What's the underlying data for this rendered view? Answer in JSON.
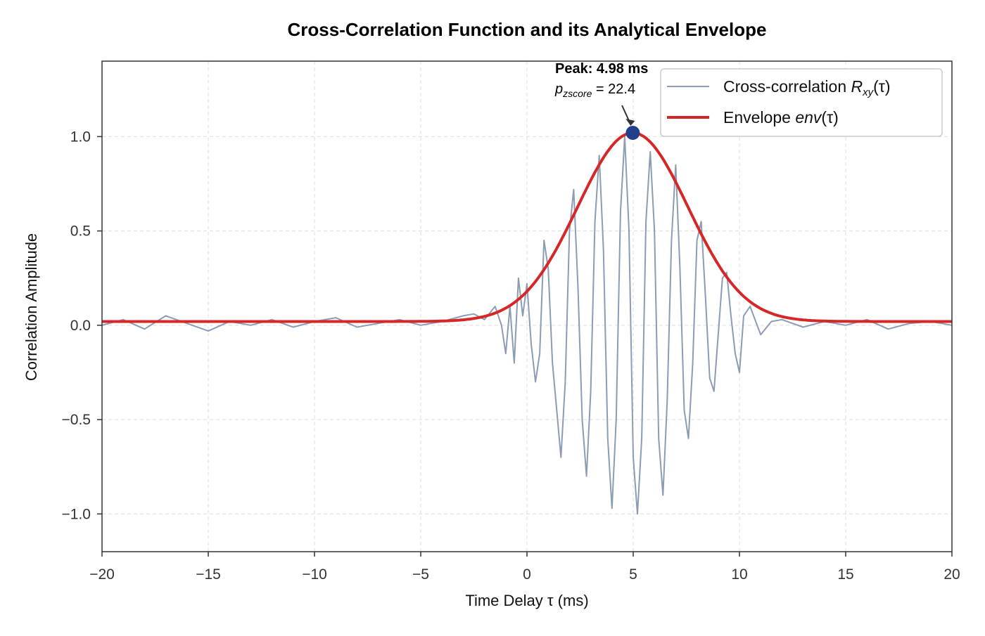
{
  "chart_data": {
    "type": "line",
    "title": "Cross-Correlation Function and its Analytical Envelope",
    "xlabel": "Time Delay τ (ms)",
    "ylabel": "Correlation Amplitude",
    "xlim": [
      -20,
      20
    ],
    "ylim": [
      -1.2,
      1.4
    ],
    "xticks": [
      -20,
      -15,
      -10,
      -5,
      0,
      5,
      10,
      15,
      20
    ],
    "xtick_labels": [
      "−20",
      "−15",
      "−10",
      "−5",
      "0",
      "5",
      "10",
      "15",
      "20"
    ],
    "yticks": [
      -1.0,
      -0.5,
      0.0,
      0.5,
      1.0
    ],
    "ytick_labels": [
      "−1.0",
      "−0.5",
      "0.0",
      "0.5",
      "1.0"
    ],
    "grid": true,
    "legend_position": "top-right",
    "series": [
      {
        "name": "Cross-correlation R_xy(τ)",
        "color": "#8c9db3",
        "x": [
          -20.0,
          -19.0,
          -18.0,
          -17.0,
          -16.0,
          -15.0,
          -14.0,
          -13.0,
          -12.0,
          -11.0,
          -10.0,
          -9.0,
          -8.0,
          -7.0,
          -6.0,
          -5.0,
          -4.0,
          -3.0,
          -2.5,
          -2.0,
          -1.5,
          -1.2,
          -1.0,
          -0.8,
          -0.6,
          -0.4,
          -0.2,
          0.0,
          0.2,
          0.4,
          0.6,
          0.8,
          1.0,
          1.2,
          1.4,
          1.6,
          1.8,
          2.0,
          2.2,
          2.4,
          2.6,
          2.8,
          3.0,
          3.2,
          3.4,
          3.6,
          3.8,
          4.0,
          4.2,
          4.4,
          4.6,
          4.8,
          5.0,
          5.2,
          5.4,
          5.6,
          5.8,
          6.0,
          6.2,
          6.4,
          6.6,
          6.8,
          7.0,
          7.2,
          7.4,
          7.6,
          7.8,
          8.0,
          8.2,
          8.4,
          8.6,
          8.8,
          9.0,
          9.2,
          9.4,
          9.6,
          9.8,
          10.0,
          10.2,
          10.5,
          11.0,
          11.5,
          12.0,
          13.0,
          14.0,
          15.0,
          16.0,
          17.0,
          18.0,
          19.0,
          20.0
        ],
        "y": [
          0.0,
          0.03,
          -0.02,
          0.05,
          0.01,
          -0.03,
          0.02,
          0.0,
          0.03,
          -0.01,
          0.02,
          0.04,
          -0.01,
          0.01,
          0.03,
          0.0,
          0.02,
          0.05,
          0.06,
          0.03,
          0.1,
          0.0,
          -0.15,
          0.1,
          -0.2,
          0.25,
          0.05,
          0.22,
          -0.1,
          -0.3,
          -0.15,
          0.45,
          0.3,
          -0.2,
          -0.45,
          -0.7,
          -0.3,
          0.5,
          0.72,
          0.2,
          -0.5,
          -0.8,
          -0.35,
          0.55,
          0.9,
          0.4,
          -0.6,
          -0.97,
          -0.5,
          0.6,
          1.0,
          0.5,
          -0.7,
          -1.0,
          -0.6,
          0.55,
          0.92,
          0.5,
          -0.6,
          -0.9,
          -0.4,
          0.45,
          0.85,
          0.3,
          -0.45,
          -0.6,
          -0.2,
          0.45,
          0.55,
          0.15,
          -0.28,
          -0.35,
          -0.05,
          0.25,
          0.28,
          0.05,
          -0.15,
          -0.25,
          0.05,
          0.1,
          -0.05,
          0.02,
          0.03,
          -0.01,
          0.02,
          0.0,
          0.03,
          -0.02,
          0.01,
          0.02,
          0.0
        ]
      },
      {
        "name": "Envelope env(τ)",
        "color": "#d62728",
        "center": 4.98,
        "amplitude": 1.0,
        "sigma": 2.6,
        "offset": 0.02
      }
    ],
    "peak": {
      "x": 4.98,
      "y": 1.02,
      "color": "#233f8c"
    },
    "annotation": {
      "line1": "Peak: 4.98 ms",
      "line2_prefix": "p",
      "line2_sub": "zscore",
      "line2_suffix": " = 22.4"
    },
    "legend": [
      {
        "label_prefix": "Cross-correlation ",
        "label_math": "R",
        "label_sub": "xy",
        "label_suffix": "(τ)"
      },
      {
        "label_prefix": "Envelope ",
        "label_math": "env",
        "label_sub": "",
        "label_suffix": "(τ)"
      }
    ]
  }
}
